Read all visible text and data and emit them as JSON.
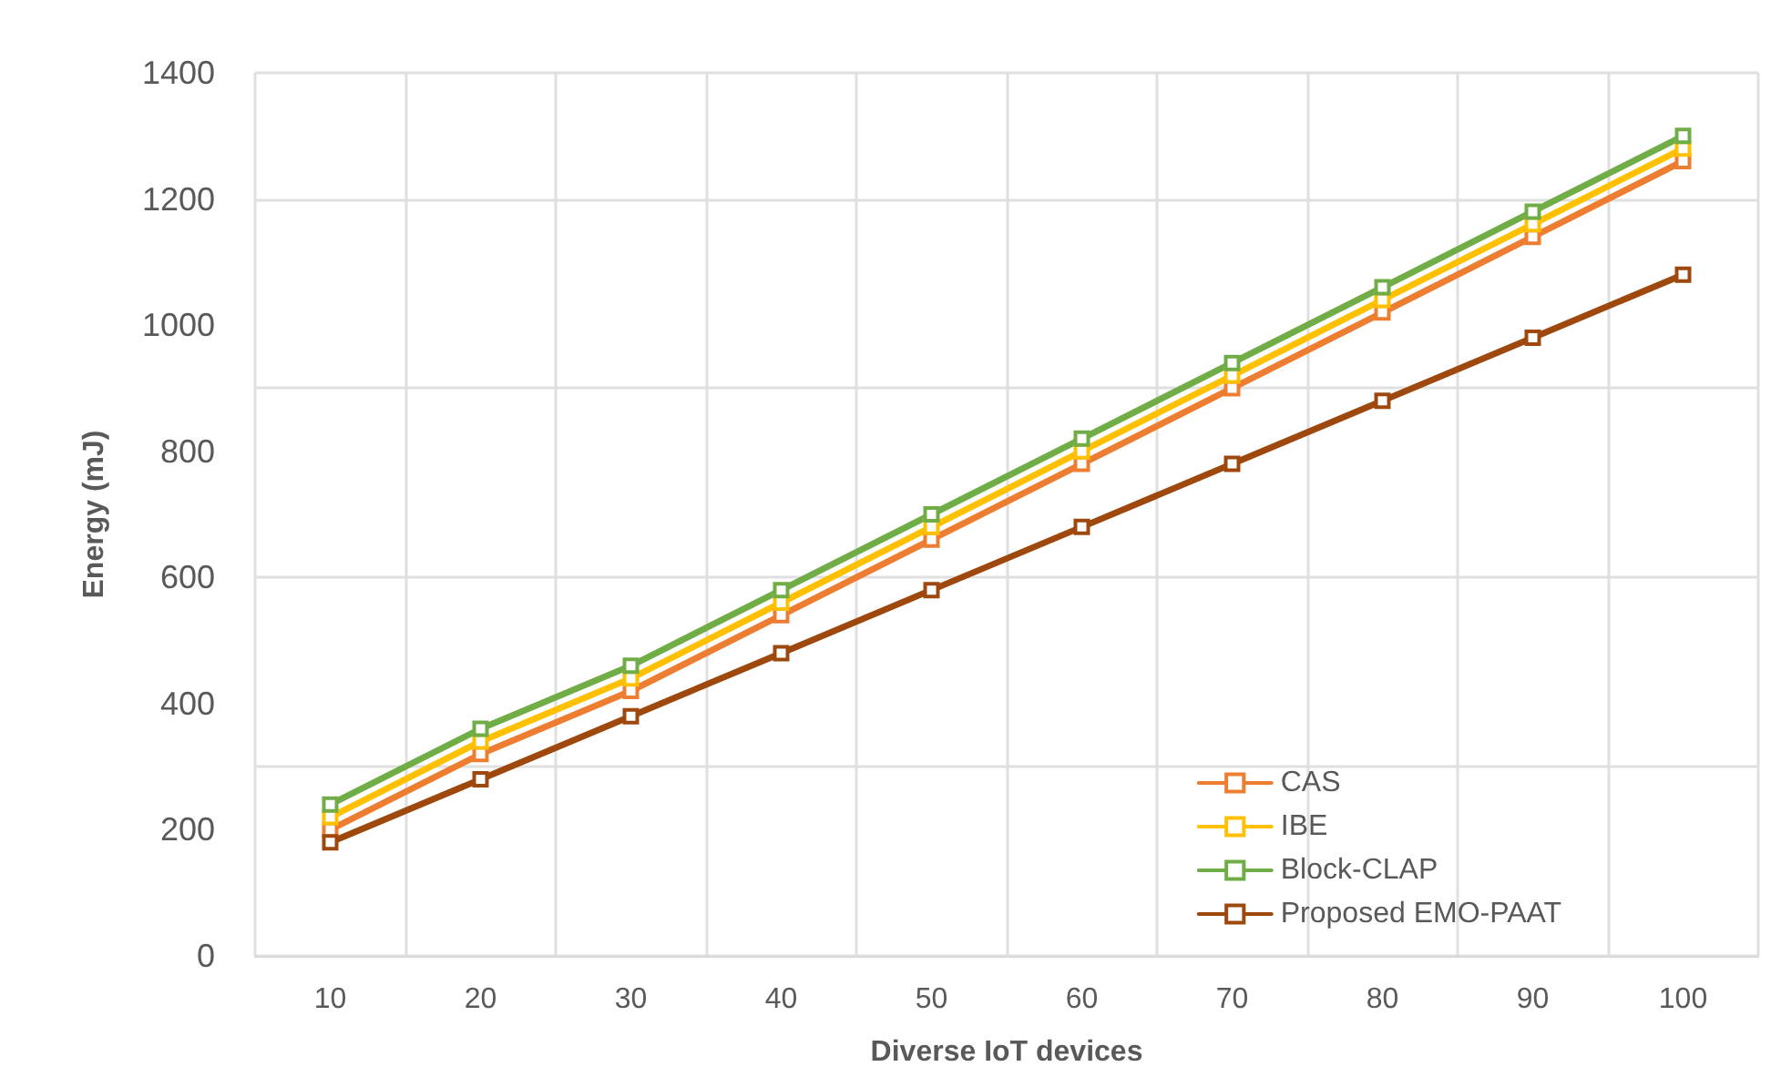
{
  "chart_data": {
    "type": "line",
    "xlabel": "Diverse IoT devices",
    "ylabel": "Energy (mJ)",
    "categories": [
      "10",
      "20",
      "30",
      "40",
      "50",
      "60",
      "70",
      "80",
      "90",
      "100"
    ],
    "series": [
      {
        "name": "CAS",
        "color": "#ed7d31",
        "values": [
          200,
          320,
          420,
          540,
          660,
          780,
          900,
          1020,
          1140,
          1260
        ]
      },
      {
        "name": "IBE",
        "color": "#ffc000",
        "values": [
          220,
          340,
          440,
          560,
          680,
          800,
          920,
          1040,
          1160,
          1280
        ]
      },
      {
        "name": "Block-CLAP",
        "color": "#70ad47",
        "values": [
          240,
          360,
          460,
          580,
          700,
          820,
          940,
          1060,
          1180,
          1300
        ]
      },
      {
        "name": "Proposed EMO-PAAT",
        "color": "#9e480e",
        "values": [
          180,
          280,
          380,
          480,
          580,
          680,
          780,
          880,
          980,
          1080
        ]
      }
    ],
    "ylim": [
      0,
      1400
    ],
    "yticks": [
      0,
      200,
      400,
      600,
      800,
      1000,
      1200,
      1400
    ],
    "grid": true,
    "legend": "bottom right",
    "marker": "square",
    "line_style": "solid"
  }
}
